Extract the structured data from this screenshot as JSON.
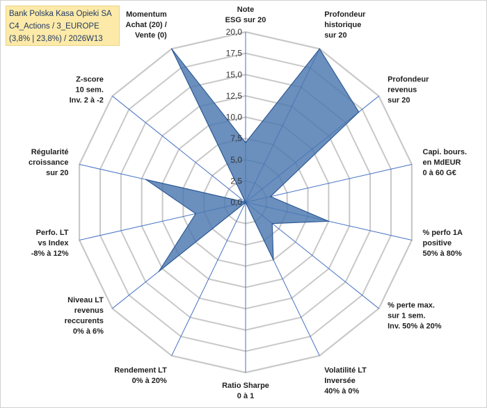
{
  "header": {
    "line1": "Bank Polska Kasa Opieki SA",
    "line2": "C4_Actions / 3_EUROPE",
    "line3": "(3,8% | 23,8%) / 2026W13"
  },
  "colors": {
    "fill": "#4a78b0",
    "stroke": "#2f5a94",
    "grid": "#c8c8c8",
    "spoke": "#4472c4",
    "header_bg": "#fdeaa8"
  },
  "chart_data": {
    "type": "radar",
    "rmin": 0,
    "rmax": 20,
    "ticks": [
      "0,0",
      "2,5",
      "5,0",
      "7,5",
      "10,0",
      "12,5",
      "15,0",
      "17,5",
      "20,0"
    ],
    "axes": [
      {
        "label": [
          "Note",
          "ESG sur 20"
        ],
        "value": 7
      },
      {
        "label": [
          "Profondeur",
          "historique",
          "sur 20"
        ],
        "value": 20
      },
      {
        "label": [
          "Profondeur",
          "revenus",
          "sur 20"
        ],
        "value": 17
      },
      {
        "label": [
          "Capi. bours.",
          "en MdEUR",
          "0 à 60 G€"
        ],
        "value": 3
      },
      {
        "label": [
          "% perfo 1A",
          "positive",
          "50% à 80%"
        ],
        "value": 10
      },
      {
        "label": [
          "% perte max.",
          "sur 1 sem.",
          "Inv. 50% à 20%"
        ],
        "value": 4
      },
      {
        "label": [
          "Volatilité LT",
          "Inversée",
          "40% à 0%"
        ],
        "value": 7.5
      },
      {
        "label": [
          "Ratio Sharpe",
          "0 à 1"
        ],
        "value": 0
      },
      {
        "label": [
          "Rendement LT",
          "0% à 20%"
        ],
        "value": 0
      },
      {
        "label": [
          "Niveau LT",
          "revenus",
          "reccurents",
          "0% à 6%"
        ],
        "value": 13
      },
      {
        "label": [
          "Perfo. LT",
          "vs Index",
          "-8% à 12%"
        ],
        "value": 6
      },
      {
        "label": [
          "Régularité",
          "croissance",
          "sur 20"
        ],
        "value": 12
      },
      {
        "label": [
          "Z-score",
          "10 sem.",
          "Inv. 2 à -2"
        ],
        "value": 0
      },
      {
        "label": [
          "Momentum",
          "Achat (20) /",
          "Vente (0)"
        ],
        "value": 20
      }
    ]
  }
}
